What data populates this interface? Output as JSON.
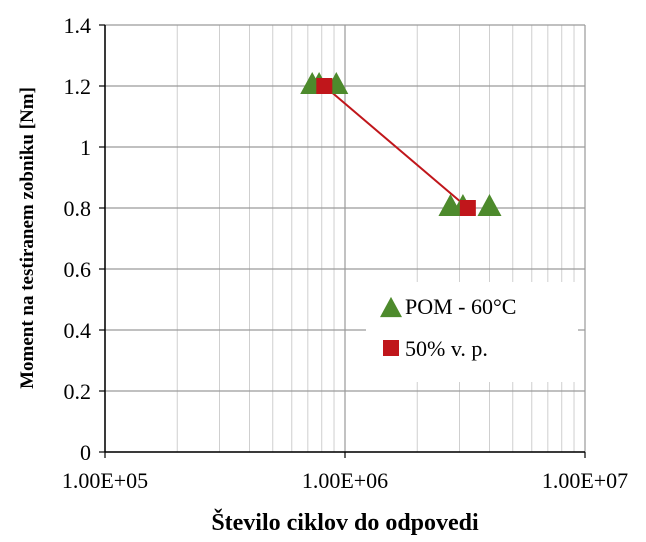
{
  "chart_data": {
    "type": "scatter",
    "title": "",
    "xlabel": "Število ciklov do odpovedi",
    "ylabel": "Moment na testiranem zobniku [Nm]",
    "xscale": "log",
    "xlim": [
      100000,
      10000000
    ],
    "ylim": [
      0,
      1.4
    ],
    "x_ticks": [
      "1.00E+05",
      "1.00E+06",
      "1.00E+07"
    ],
    "y_ticks": [
      "0",
      "0.2",
      "0.4",
      "0.6",
      "0.8",
      "1",
      "1.2",
      "1.4"
    ],
    "grid": true,
    "legend_position": "bottom-right",
    "series": [
      {
        "name": "POM - 60°C",
        "marker": "triangle",
        "color": "#4d8a2c",
        "x": [
          730000,
          780000,
          920000,
          2750000,
          3100000,
          4000000
        ],
        "y": [
          1.2,
          1.2,
          1.2,
          0.8,
          0.8,
          0.8
        ]
      },
      {
        "name": "50% v. p.",
        "marker": "square",
        "line": true,
        "color": "#c0161b",
        "x": [
          820000,
          3250000
        ],
        "y": [
          1.2,
          0.8
        ]
      }
    ]
  }
}
